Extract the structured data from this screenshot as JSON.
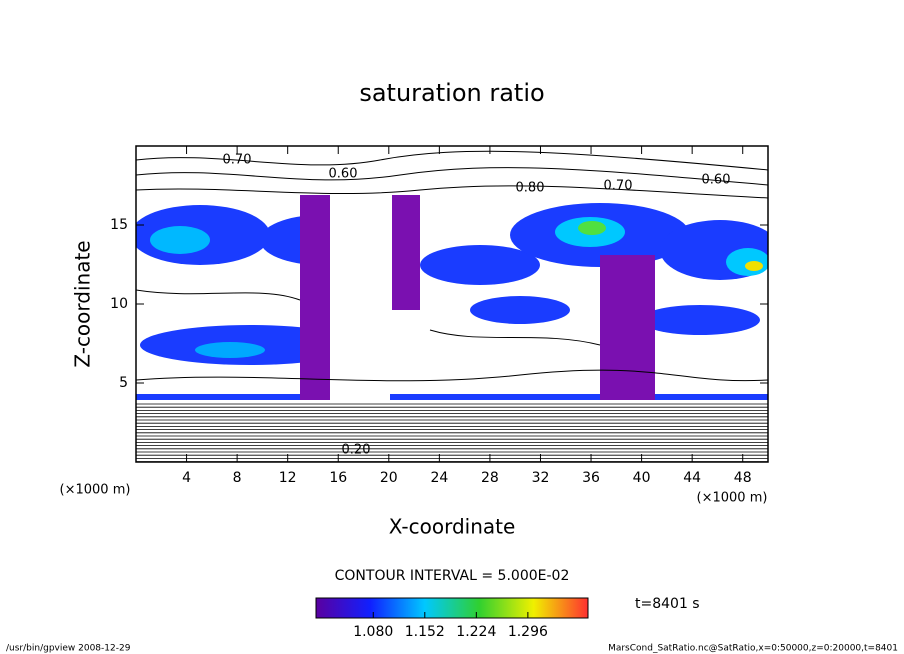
{
  "chart_data": {
    "type": "contour",
    "title": "saturation ratio",
    "xlabel": "X-coordinate",
    "ylabel": "Z-coordinate",
    "xunit": "(×1000 m)",
    "yunit": "(×1000 m)",
    "xlim": [
      0,
      50
    ],
    "xticks": [
      4,
      8,
      12,
      16,
      20,
      24,
      28,
      32,
      36,
      40,
      44,
      48
    ],
    "ylim": [
      0,
      20
    ],
    "yticks": [
      5,
      10,
      15
    ],
    "contour_labels": [
      "0.70",
      "0.60",
      "0.80",
      "0.70",
      "0.60",
      "0.20"
    ],
    "contour_interval": "CONTOUR INTERVAL = 5.000E-02",
    "time": "t=8401 s",
    "colorbar": {
      "lim": [
        1.0,
        1.38
      ],
      "ticks": [
        {
          "value": 1.08,
          "label": "1.080"
        },
        {
          "value": 1.152,
          "label": "1.152"
        },
        {
          "value": 1.224,
          "label": "1.224"
        },
        {
          "value": 1.296,
          "label": "1.296"
        }
      ]
    },
    "footer_left": "/usr/bin/gpview  2008-12-29",
    "footer_right": "MarsCond_SatRatio.nc@SatRatio,x=0:50000,z=0:20000,t=8401"
  }
}
